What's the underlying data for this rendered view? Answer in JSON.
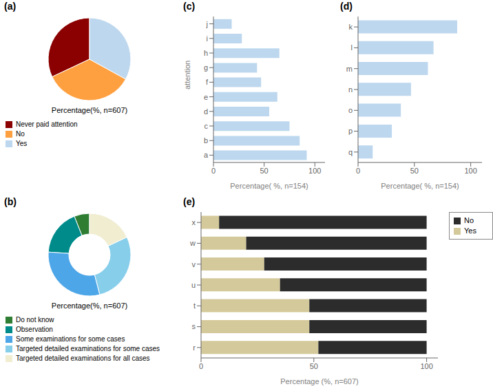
{
  "chart_data": [
    {
      "type": "pie",
      "title": "(a)",
      "subtitle": "Percentage(%, n=607)",
      "categories": [
        "Never paid attention",
        "No",
        "Yes"
      ],
      "values": [
        32,
        35,
        33
      ],
      "colors": [
        "#8B0000",
        "#FFA040",
        "#BDD7EE"
      ],
      "legend": "bottom"
    },
    {
      "type": "donut",
      "title": "(b)",
      "subtitle": "Percentage(%, n=607)",
      "categories": [
        "Do not know",
        "Observation",
        "Some examinations for some cases",
        "Targeted detailed examinations for some cases",
        "Targeted detailed examinations for all cases"
      ],
      "values": [
        6,
        18,
        30,
        28,
        18
      ],
      "colors": [
        "#2E7D32",
        "#008B8B",
        "#4DA6E8",
        "#87CEEB",
        "#F0EDD0"
      ],
      "legend": "bottom"
    },
    {
      "type": "bar",
      "title": "(c)",
      "orientation": "horizontal",
      "categories": [
        "a",
        "b",
        "c",
        "d",
        "e",
        "f",
        "g",
        "h",
        "i",
        "j"
      ],
      "values": [
        92,
        85,
        75,
        55,
        63,
        47,
        43,
        65,
        28,
        18
      ],
      "color": "#BDD7EE",
      "xlabel": "Percentage( %, n=154)",
      "ylabel": "attention",
      "xlim": [
        0,
        110
      ],
      "xticks": [
        0,
        50,
        100
      ],
      "grid": false
    },
    {
      "type": "bar",
      "title": "(d)",
      "orientation": "horizontal",
      "categories": [
        "q",
        "p",
        "o",
        "n",
        "m",
        "l",
        "k"
      ],
      "values": [
        13,
        30,
        38,
        47,
        62,
        67,
        88
      ],
      "color": "#BDD7EE",
      "xlabel": "Percentage( %, n=154)",
      "xlim": [
        0,
        110
      ],
      "xticks": [
        0,
        50,
        100
      ],
      "grid": false
    },
    {
      "type": "bar",
      "title": "(e)",
      "orientation": "horizontal",
      "stacked": true,
      "categories": [
        "r",
        "s",
        "t",
        "u",
        "v",
        "w",
        "x"
      ],
      "series": [
        {
          "name": "Yes",
          "color": "#D4C99A",
          "values": [
            52,
            48,
            48,
            35,
            28,
            20,
            8
          ]
        },
        {
          "name": "No",
          "color": "#2C2C2C",
          "values": [
            48,
            52,
            52,
            65,
            72,
            80,
            92
          ]
        }
      ],
      "xlabel": "Percentage (%, n=607)",
      "xlim": [
        0,
        105
      ],
      "xticks": [
        0,
        50,
        100
      ],
      "legend": "upper right",
      "grid": false
    }
  ]
}
